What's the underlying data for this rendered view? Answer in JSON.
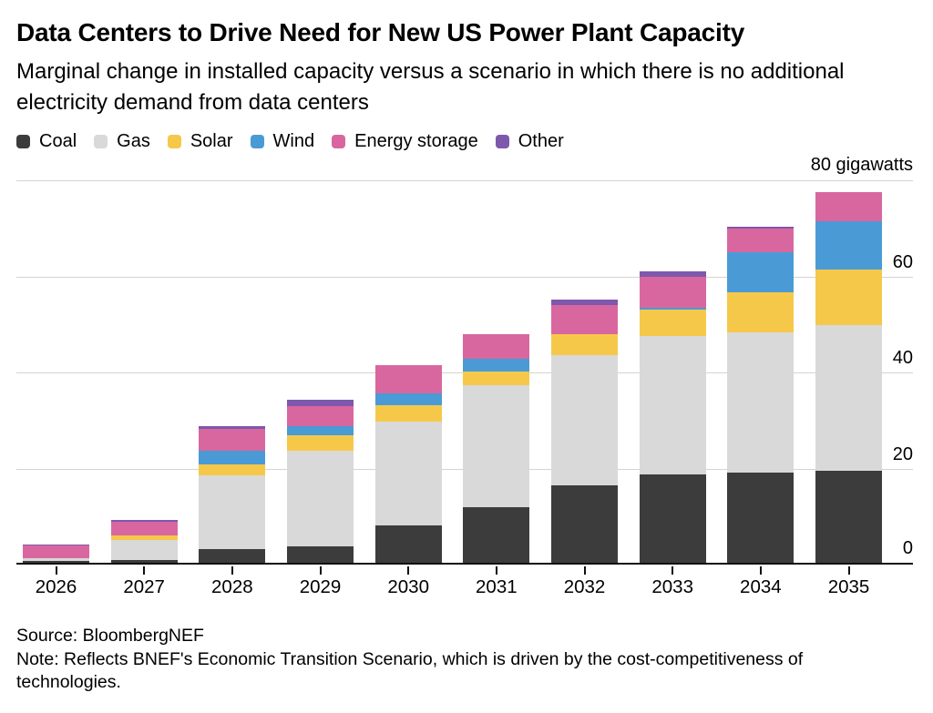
{
  "header": {
    "title": "Data Centers to Drive Need for New US Power Plant Capacity",
    "subtitle": "Marginal change in installed capacity versus a scenario in which there is no additional electricity demand from data centers"
  },
  "chart_data": {
    "type": "bar",
    "stacked": true,
    "title": "Data Centers to Drive Need for New US Power Plant Capacity",
    "unit_label": "80 gigawatts",
    "ylabel": "gigawatts",
    "ylim": [
      0,
      80
    ],
    "yticks": [
      0,
      20,
      40,
      60,
      80
    ],
    "grid": true,
    "legend_position": "top",
    "categories": [
      "2026",
      "2027",
      "2028",
      "2029",
      "2030",
      "2031",
      "2032",
      "2033",
      "2034",
      "2035"
    ],
    "series": [
      {
        "name": "Coal",
        "color": "#3c3c3c",
        "values": [
          0.8,
          1.0,
          3.2,
          3.8,
          8.2,
          12.0,
          16.5,
          18.8,
          19.2,
          19.5
        ]
      },
      {
        "name": "Gas",
        "color": "#d9d9d9",
        "values": [
          0.6,
          4.2,
          15.4,
          19.9,
          21.6,
          25.4,
          27.1,
          28.7,
          29.2,
          30.4
        ]
      },
      {
        "name": "Solar",
        "color": "#f6c84a",
        "values": [
          0,
          0.8,
          2.3,
          3.2,
          3.4,
          2.7,
          4.4,
          5.5,
          8.3,
          11.6
        ]
      },
      {
        "name": "Wind",
        "color": "#4a9bd5",
        "values": [
          0,
          0,
          2.8,
          1.9,
          2.5,
          2.8,
          0,
          0.4,
          8.3,
          10.0
        ]
      },
      {
        "name": "Energy storage",
        "color": "#d9679f",
        "values": [
          2.6,
          3.0,
          4.6,
          4.2,
          5.9,
          5.1,
          6.1,
          6.5,
          4.9,
          6.1
        ]
      },
      {
        "name": "Other",
        "color": "#7e58ad",
        "values": [
          0.2,
          0.3,
          0.5,
          1.3,
          0,
          0,
          1.1,
          1.2,
          0.5,
          0
        ]
      }
    ]
  },
  "footer": {
    "source": "Source: BloombergNEF",
    "note": "Note: Reflects BNEF's Economic Transition Scenario, which is driven by the cost-competitiveness of technologies."
  }
}
